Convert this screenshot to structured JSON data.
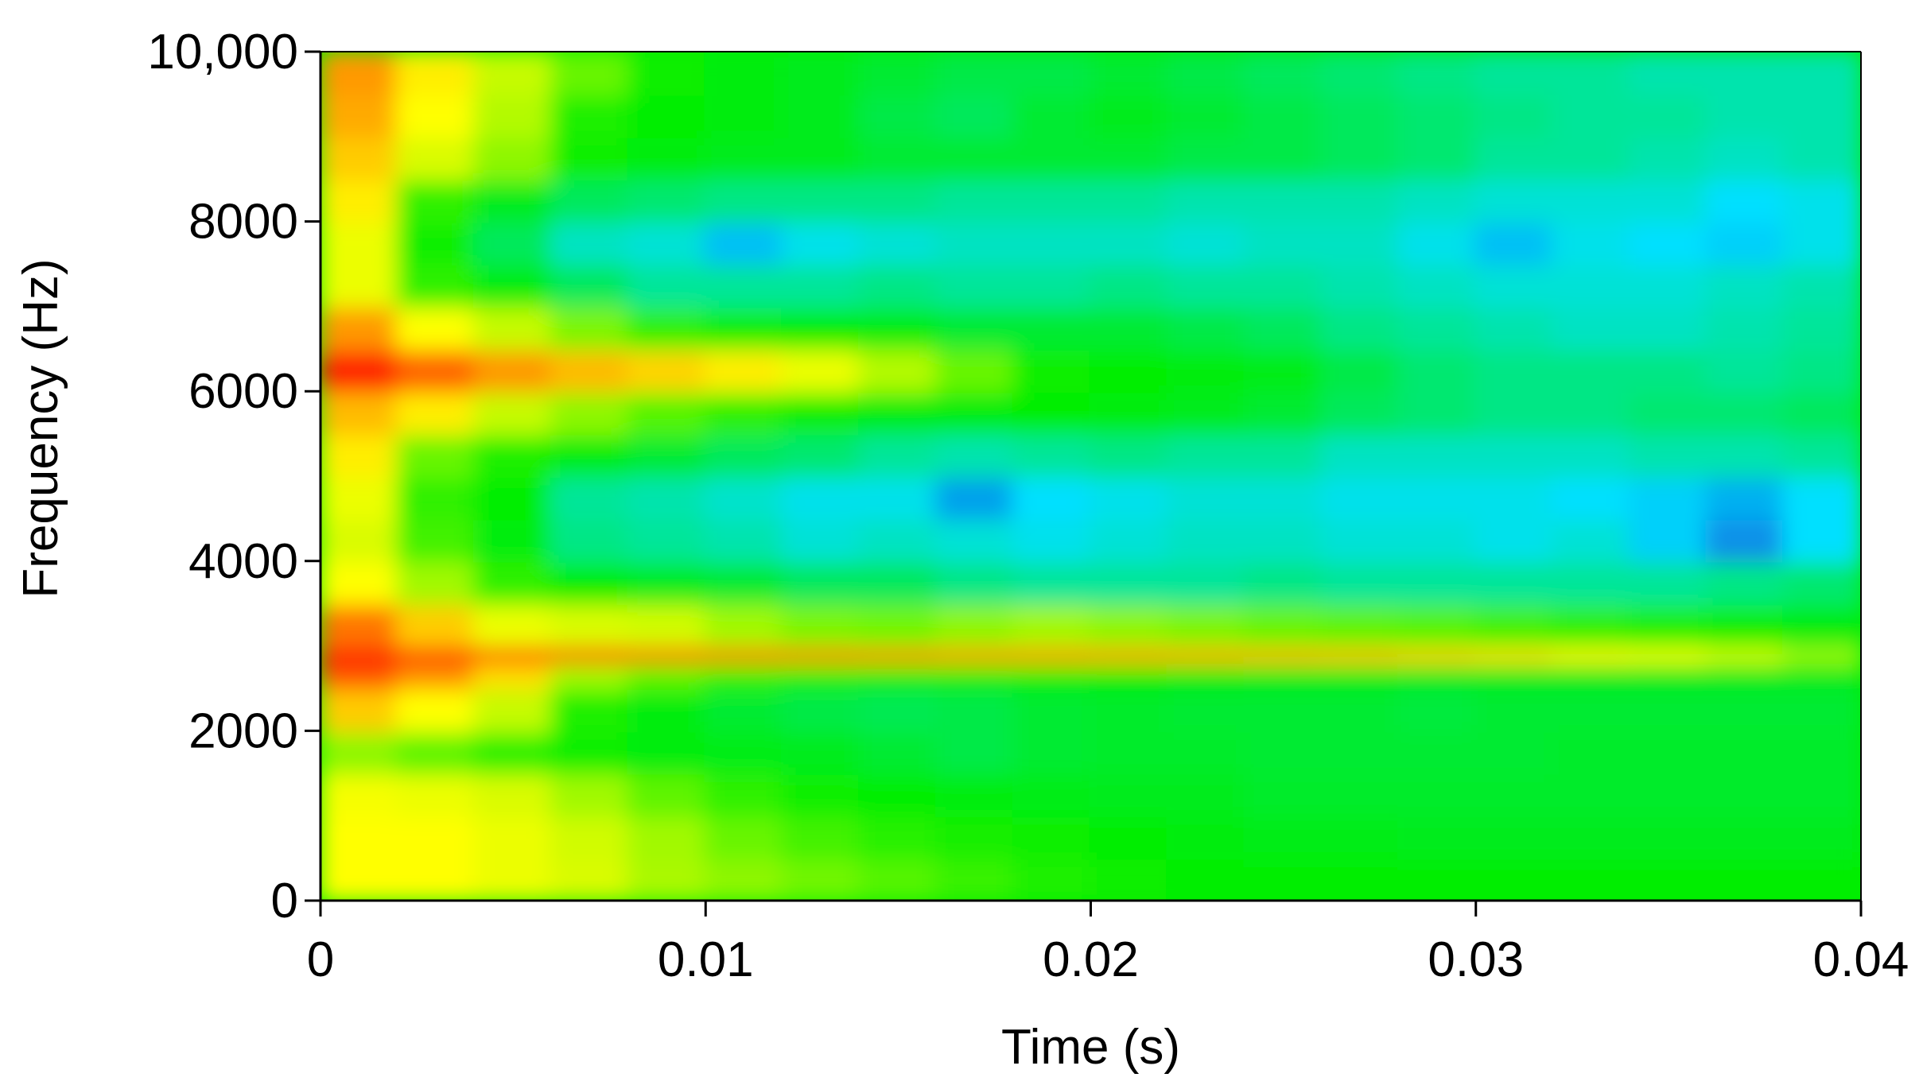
{
  "chart_data": {
    "type": "heatmap",
    "title": "",
    "xlabel": "Time (s)",
    "ylabel": "Frequency (Hz)",
    "xlim": [
      0,
      0.04
    ],
    "ylim": [
      0,
      10000
    ],
    "x_ticks": [
      0,
      0.01,
      0.02,
      0.03,
      0.04
    ],
    "x_tick_labels": [
      "0",
      "0.01",
      "0.02",
      "0.03",
      "0.04"
    ],
    "y_ticks": [
      0,
      2000,
      4000,
      6000,
      8000,
      10000
    ],
    "y_tick_labels": [
      "0",
      "2000",
      "4000",
      "6000",
      "8000",
      "10,000"
    ],
    "grid": false,
    "legend": "none",
    "colormap": {
      "name": "blue-cyan-green-yellow-red",
      "stops": [
        {
          "value": 0.0,
          "color": "#1040d0"
        },
        {
          "value": 0.2,
          "color": "#00e0ff"
        },
        {
          "value": 0.45,
          "color": "#00ee00"
        },
        {
          "value": 0.72,
          "color": "#ffff00"
        },
        {
          "value": 1.0,
          "color": "#ff1000"
        }
      ]
    },
    "grid_cells": {
      "time_bins": [
        0,
        0.002,
        0.004,
        0.006,
        0.008,
        0.01,
        0.012,
        0.014,
        0.016,
        0.018,
        0.02,
        0.022,
        0.024,
        0.026,
        0.028,
        0.03,
        0.032,
        0.034,
        0.036,
        0.038,
        0.04
      ],
      "frequency_bins": [
        0,
        500,
        1000,
        1500,
        2000,
        2500,
        2800,
        3000,
        3500,
        4000,
        4500,
        5000,
        5500,
        6000,
        6500,
        7000,
        7500,
        8000,
        8500,
        9000,
        9500,
        10000
      ],
      "intensity": [
        [
          0.72,
          0.72,
          0.7,
          0.68,
          0.63,
          0.6,
          0.57,
          0.54,
          0.51,
          0.48,
          0.46,
          0.45,
          0.45,
          0.45,
          0.45,
          0.45,
          0.45,
          0.45,
          0.45,
          0.45,
          0.45
        ],
        [
          0.72,
          0.72,
          0.7,
          0.67,
          0.62,
          0.56,
          0.52,
          0.49,
          0.47,
          0.46,
          0.45,
          0.44,
          0.43,
          0.43,
          0.42,
          0.42,
          0.42,
          0.42,
          0.42,
          0.42,
          0.42
        ],
        [
          0.71,
          0.7,
          0.68,
          0.62,
          0.55,
          0.5,
          0.46,
          0.45,
          0.44,
          0.43,
          0.42,
          0.42,
          0.41,
          0.41,
          0.41,
          0.41,
          0.41,
          0.41,
          0.41,
          0.41,
          0.41
        ],
        [
          0.6,
          0.55,
          0.5,
          0.46,
          0.44,
          0.43,
          0.42,
          0.4,
          0.38,
          0.4,
          0.41,
          0.41,
          0.4,
          0.4,
          0.4,
          0.4,
          0.41,
          0.41,
          0.41,
          0.41,
          0.41
        ],
        [
          0.78,
          0.72,
          0.66,
          0.48,
          0.44,
          0.4,
          0.38,
          0.37,
          0.38,
          0.4,
          0.41,
          0.4,
          0.4,
          0.4,
          0.39,
          0.4,
          0.4,
          0.4,
          0.4,
          0.4,
          0.4
        ],
        [
          0.92,
          0.85,
          0.76,
          0.62,
          0.55,
          0.5,
          0.48,
          0.47,
          0.47,
          0.46,
          0.45,
          0.44,
          0.43,
          0.43,
          0.42,
          0.42,
          0.42,
          0.42,
          0.42,
          0.42,
          0.42
        ],
        [
          1.0,
          0.96,
          0.92,
          0.9,
          0.88,
          0.87,
          0.86,
          0.85,
          0.84,
          0.84,
          0.83,
          0.82,
          0.81,
          0.8,
          0.78,
          0.76,
          0.73,
          0.71,
          0.68,
          0.62,
          0.52
        ],
        [
          0.88,
          0.78,
          0.7,
          0.68,
          0.67,
          0.62,
          0.58,
          0.57,
          0.6,
          0.62,
          0.6,
          0.58,
          0.56,
          0.55,
          0.54,
          0.52,
          0.5,
          0.48,
          0.46,
          0.44,
          0.42
        ],
        [
          0.72,
          0.62,
          0.5,
          0.45,
          0.42,
          0.4,
          0.36,
          0.36,
          0.32,
          0.3,
          0.3,
          0.3,
          0.32,
          0.3,
          0.3,
          0.3,
          0.3,
          0.3,
          0.32,
          0.34,
          0.4
        ],
        [
          0.68,
          0.52,
          0.44,
          0.32,
          0.3,
          0.28,
          0.24,
          0.26,
          0.24,
          0.22,
          0.24,
          0.26,
          0.26,
          0.24,
          0.24,
          0.22,
          0.24,
          0.18,
          0.1,
          0.2,
          0.38
        ],
        [
          0.7,
          0.5,
          0.45,
          0.3,
          0.28,
          0.25,
          0.22,
          0.22,
          0.12,
          0.2,
          0.22,
          0.24,
          0.24,
          0.22,
          0.22,
          0.22,
          0.2,
          0.18,
          0.14,
          0.2,
          0.36
        ],
        [
          0.74,
          0.56,
          0.48,
          0.44,
          0.4,
          0.36,
          0.34,
          0.3,
          0.28,
          0.3,
          0.32,
          0.3,
          0.3,
          0.26,
          0.26,
          0.26,
          0.26,
          0.28,
          0.28,
          0.3,
          0.38
        ],
        [
          0.8,
          0.74,
          0.66,
          0.6,
          0.54,
          0.5,
          0.46,
          0.44,
          0.44,
          0.45,
          0.44,
          0.42,
          0.4,
          0.36,
          0.34,
          0.32,
          0.32,
          0.34,
          0.34,
          0.36,
          0.4
        ],
        [
          0.98,
          0.9,
          0.84,
          0.8,
          0.77,
          0.74,
          0.7,
          0.64,
          0.56,
          0.46,
          0.45,
          0.44,
          0.43,
          0.38,
          0.34,
          0.32,
          0.32,
          0.32,
          0.3,
          0.32,
          0.38
        ],
        [
          0.84,
          0.72,
          0.66,
          0.58,
          0.5,
          0.46,
          0.45,
          0.44,
          0.4,
          0.4,
          0.4,
          0.38,
          0.36,
          0.32,
          0.3,
          0.28,
          0.26,
          0.26,
          0.28,
          0.3,
          0.36
        ],
        [
          0.7,
          0.5,
          0.44,
          0.36,
          0.3,
          0.3,
          0.3,
          0.32,
          0.3,
          0.3,
          0.32,
          0.3,
          0.3,
          0.28,
          0.26,
          0.24,
          0.24,
          0.24,
          0.26,
          0.28,
          0.34
        ],
        [
          0.7,
          0.46,
          0.36,
          0.26,
          0.24,
          0.16,
          0.22,
          0.24,
          0.26,
          0.26,
          0.26,
          0.24,
          0.26,
          0.26,
          0.22,
          0.16,
          0.22,
          0.2,
          0.18,
          0.22,
          0.32
        ],
        [
          0.74,
          0.5,
          0.42,
          0.36,
          0.34,
          0.32,
          0.32,
          0.32,
          0.3,
          0.3,
          0.3,
          0.28,
          0.28,
          0.28,
          0.26,
          0.24,
          0.24,
          0.24,
          0.2,
          0.22,
          0.3
        ],
        [
          0.78,
          0.68,
          0.6,
          0.46,
          0.44,
          0.42,
          0.42,
          0.4,
          0.4,
          0.4,
          0.4,
          0.38,
          0.38,
          0.36,
          0.34,
          0.3,
          0.3,
          0.28,
          0.26,
          0.28,
          0.32
        ],
        [
          0.82,
          0.72,
          0.64,
          0.48,
          0.45,
          0.44,
          0.42,
          0.38,
          0.36,
          0.4,
          0.42,
          0.4,
          0.38,
          0.36,
          0.34,
          0.32,
          0.3,
          0.3,
          0.28,
          0.28,
          0.3
        ],
        [
          0.84,
          0.74,
          0.66,
          0.56,
          0.46,
          0.44,
          0.42,
          0.4,
          0.38,
          0.38,
          0.4,
          0.38,
          0.36,
          0.34,
          0.32,
          0.3,
          0.3,
          0.28,
          0.28,
          0.28,
          0.3
        ]
      ]
    }
  }
}
